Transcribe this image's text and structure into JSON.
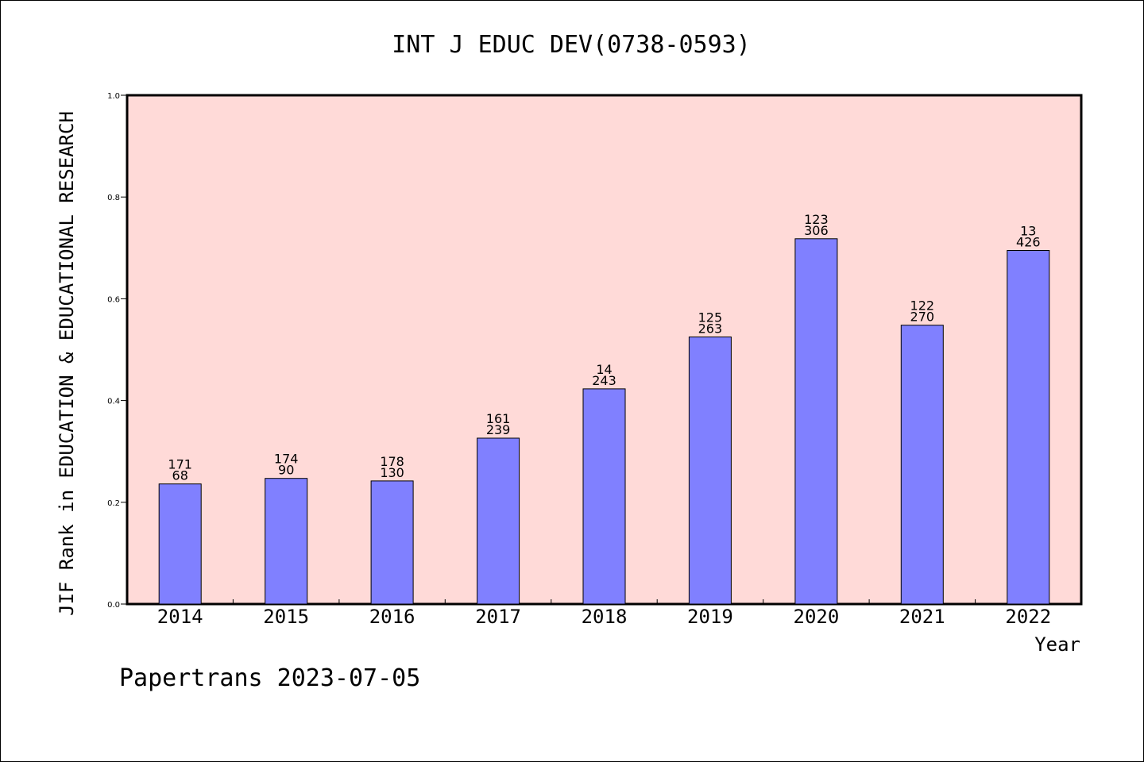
{
  "chart_data": {
    "type": "bar",
    "title": "INT J EDUC DEV(0738-0593)",
    "xlabel": "Year",
    "ylabel": "JIF Rank in EDUCATION & EDUCATIONAL RESEARCH",
    "ylim": [
      0,
      1.0
    ],
    "yticks": [
      "0.0",
      "0.2",
      "0.4",
      "0.6",
      "0.8",
      "1.0"
    ],
    "categories": [
      "2014",
      "2015",
      "2016",
      "2017",
      "2018",
      "2019",
      "2020",
      "2021",
      "2022"
    ],
    "values": [
      0.236,
      0.247,
      0.242,
      0.326,
      0.423,
      0.525,
      0.718,
      0.548,
      0.695
    ],
    "labels_top": [
      "171",
      "174",
      "178",
      "161",
      "14",
      "125",
      "123",
      "122",
      "13"
    ],
    "labels_bottom": [
      "68",
      "90",
      "130",
      "239",
      "243",
      "263",
      "306",
      "270",
      "426"
    ],
    "grid": false,
    "colors": {
      "plot_bg": "#ffdad8",
      "bar": "#8080ff",
      "bar_edge": "#000000"
    }
  },
  "footer": "Papertrans 2023-07-05"
}
